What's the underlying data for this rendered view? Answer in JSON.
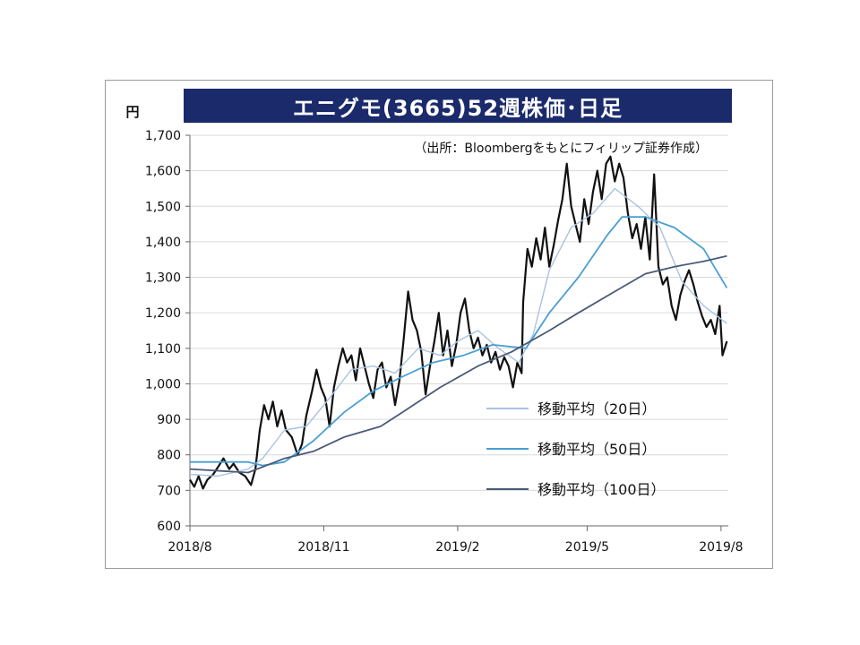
{
  "chart_data": {
    "type": "line",
    "title": "エニグモ(3665)52週株価･日足",
    "subtitle": "（出所：Bloombergをもとにフィリップ証券作成）",
    "ylabel": "円",
    "ylim": [
      600,
      1700
    ],
    "yticks": [
      600,
      700,
      800,
      900,
      1000,
      1100,
      1200,
      1300,
      1400,
      1500,
      1600,
      1700
    ],
    "ytick_labels": [
      "600",
      "700",
      "800",
      "900",
      "1,000",
      "1,100",
      "1,200",
      "1,300",
      "1,400",
      "1,500",
      "1,600",
      "1,700"
    ],
    "xlim": [
      "2018-08-01",
      "2019-08-06"
    ],
    "xticks": [
      "2018-08-01",
      "2018-11-01",
      "2019-02-01",
      "2019-05-01",
      "2019-08-01"
    ],
    "xtick_labels": [
      "2018/8",
      "2018/11",
      "2019/2",
      "2019/5",
      "2019/8"
    ],
    "grid": true,
    "legend_position": "bottom-right",
    "series": [
      {
        "name": "",
        "color": "#111111",
        "points": [
          [
            "2018-08-01",
            730
          ],
          [
            "2018-08-04",
            710
          ],
          [
            "2018-08-07",
            740
          ],
          [
            "2018-08-10",
            705
          ],
          [
            "2018-08-13",
            730
          ],
          [
            "2018-08-17",
            745
          ],
          [
            "2018-08-21",
            770
          ],
          [
            "2018-08-24",
            790
          ],
          [
            "2018-08-28",
            760
          ],
          [
            "2018-08-31",
            775
          ],
          [
            "2018-09-04",
            750
          ],
          [
            "2018-09-08",
            740
          ],
          [
            "2018-09-12",
            715
          ],
          [
            "2018-09-15",
            760
          ],
          [
            "2018-09-18",
            870
          ],
          [
            "2018-09-21",
            940
          ],
          [
            "2018-09-24",
            900
          ],
          [
            "2018-09-27",
            950
          ],
          [
            "2018-09-30",
            880
          ],
          [
            "2018-10-03",
            925
          ],
          [
            "2018-10-06",
            870
          ],
          [
            "2018-10-10",
            850
          ],
          [
            "2018-10-14",
            800
          ],
          [
            "2018-10-17",
            830
          ],
          [
            "2018-10-20",
            910
          ],
          [
            "2018-10-24",
            980
          ],
          [
            "2018-10-27",
            1040
          ],
          [
            "2018-10-30",
            990
          ],
          [
            "2018-11-02",
            960
          ],
          [
            "2018-11-05",
            880
          ],
          [
            "2018-11-08",
            990
          ],
          [
            "2018-11-11",
            1050
          ],
          [
            "2018-11-14",
            1100
          ],
          [
            "2018-11-17",
            1060
          ],
          [
            "2018-11-20",
            1080
          ],
          [
            "2018-11-23",
            1010
          ],
          [
            "2018-11-26",
            1100
          ],
          [
            "2018-11-29",
            1050
          ],
          [
            "2018-12-02",
            1000
          ],
          [
            "2018-12-05",
            960
          ],
          [
            "2018-12-08",
            1040
          ],
          [
            "2018-12-11",
            1060
          ],
          [
            "2018-12-14",
            990
          ],
          [
            "2018-12-17",
            1020
          ],
          [
            "2018-12-20",
            940
          ],
          [
            "2018-12-23",
            1010
          ],
          [
            "2018-12-26",
            1130
          ],
          [
            "2018-12-29",
            1260
          ],
          [
            "2019-01-01",
            1180
          ],
          [
            "2019-01-04",
            1150
          ],
          [
            "2019-01-07",
            1090
          ],
          [
            "2019-01-10",
            970
          ],
          [
            "2019-01-13",
            1050
          ],
          [
            "2019-01-16",
            1120
          ],
          [
            "2019-01-19",
            1200
          ],
          [
            "2019-01-22",
            1080
          ],
          [
            "2019-01-25",
            1150
          ],
          [
            "2019-01-28",
            1050
          ],
          [
            "2019-01-31",
            1110
          ],
          [
            "2019-02-03",
            1200
          ],
          [
            "2019-02-06",
            1240
          ],
          [
            "2019-02-09",
            1150
          ],
          [
            "2019-02-12",
            1100
          ],
          [
            "2019-02-15",
            1130
          ],
          [
            "2019-02-18",
            1080
          ],
          [
            "2019-02-21",
            1110
          ],
          [
            "2019-02-24",
            1060
          ],
          [
            "2019-02-27",
            1090
          ],
          [
            "2019-03-02",
            1040
          ],
          [
            "2019-03-05",
            1075
          ],
          [
            "2019-03-08",
            1050
          ],
          [
            "2019-03-11",
            990
          ],
          [
            "2019-03-14",
            1060
          ],
          [
            "2019-03-17",
            1030
          ],
          [
            "2019-03-18",
            1230
          ],
          [
            "2019-03-21",
            1380
          ],
          [
            "2019-03-24",
            1330
          ],
          [
            "2019-03-27",
            1410
          ],
          [
            "2019-03-30",
            1350
          ],
          [
            "2019-04-02",
            1440
          ],
          [
            "2019-04-05",
            1330
          ],
          [
            "2019-04-08",
            1390
          ],
          [
            "2019-04-11",
            1460
          ],
          [
            "2019-04-14",
            1520
          ],
          [
            "2019-04-17",
            1620
          ],
          [
            "2019-04-20",
            1500
          ],
          [
            "2019-04-23",
            1450
          ],
          [
            "2019-04-26",
            1400
          ],
          [
            "2019-04-29",
            1520
          ],
          [
            "2019-05-02",
            1450
          ],
          [
            "2019-05-05",
            1540
          ],
          [
            "2019-05-08",
            1600
          ],
          [
            "2019-05-11",
            1520
          ],
          [
            "2019-05-14",
            1620
          ],
          [
            "2019-05-17",
            1640
          ],
          [
            "2019-05-20",
            1570
          ],
          [
            "2019-05-23",
            1620
          ],
          [
            "2019-05-26",
            1580
          ],
          [
            "2019-05-29",
            1480
          ],
          [
            "2019-06-01",
            1410
          ],
          [
            "2019-06-04",
            1450
          ],
          [
            "2019-06-07",
            1380
          ],
          [
            "2019-06-10",
            1470
          ],
          [
            "2019-06-13",
            1350
          ],
          [
            "2019-06-16",
            1590
          ],
          [
            "2019-06-19",
            1330
          ],
          [
            "2019-06-22",
            1280
          ],
          [
            "2019-06-25",
            1300
          ],
          [
            "2019-06-28",
            1220
          ],
          [
            "2019-07-01",
            1180
          ],
          [
            "2019-07-04",
            1250
          ],
          [
            "2019-07-07",
            1290
          ],
          [
            "2019-07-10",
            1320
          ],
          [
            "2019-07-13",
            1280
          ],
          [
            "2019-07-16",
            1230
          ],
          [
            "2019-07-19",
            1190
          ],
          [
            "2019-07-22",
            1160
          ],
          [
            "2019-07-25",
            1180
          ],
          [
            "2019-07-28",
            1140
          ],
          [
            "2019-07-31",
            1220
          ],
          [
            "2019-08-02",
            1080
          ],
          [
            "2019-08-05",
            1120
          ]
        ]
      },
      {
        "name": "移動平均（20日）",
        "color": "#a9c3e2",
        "points": [
          [
            "2018-08-01",
            745
          ],
          [
            "2018-08-20",
            740
          ],
          [
            "2018-09-10",
            760
          ],
          [
            "2018-09-20",
            790
          ],
          [
            "2018-10-05",
            870
          ],
          [
            "2018-10-20",
            880
          ],
          [
            "2018-11-05",
            960
          ],
          [
            "2018-11-20",
            1040
          ],
          [
            "2018-12-05",
            1050
          ],
          [
            "2018-12-20",
            1030
          ],
          [
            "2019-01-05",
            1100
          ],
          [
            "2019-01-20",
            1080
          ],
          [
            "2019-02-01",
            1120
          ],
          [
            "2019-02-15",
            1150
          ],
          [
            "2019-03-01",
            1100
          ],
          [
            "2019-03-15",
            1060
          ],
          [
            "2019-03-25",
            1140
          ],
          [
            "2019-04-05",
            1320
          ],
          [
            "2019-04-20",
            1440
          ],
          [
            "2019-05-05",
            1480
          ],
          [
            "2019-05-20",
            1550
          ],
          [
            "2019-06-05",
            1500
          ],
          [
            "2019-06-20",
            1440
          ],
          [
            "2019-07-05",
            1290
          ],
          [
            "2019-07-20",
            1220
          ],
          [
            "2019-08-05",
            1170
          ]
        ]
      },
      {
        "name": "移動平均（50日）",
        "color": "#4a9fd2",
        "points": [
          [
            "2018-08-01",
            780
          ],
          [
            "2018-09-10",
            780
          ],
          [
            "2018-09-20",
            770
          ],
          [
            "2018-10-05",
            780
          ],
          [
            "2018-10-25",
            840
          ],
          [
            "2018-11-15",
            920
          ],
          [
            "2018-12-05",
            980
          ],
          [
            "2018-12-25",
            1020
          ],
          [
            "2019-01-15",
            1060
          ],
          [
            "2019-02-05",
            1080
          ],
          [
            "2019-02-25",
            1110
          ],
          [
            "2019-03-20",
            1100
          ],
          [
            "2019-04-05",
            1200
          ],
          [
            "2019-04-25",
            1300
          ],
          [
            "2019-05-15",
            1420
          ],
          [
            "2019-05-25",
            1470
          ],
          [
            "2019-06-10",
            1470
          ],
          [
            "2019-06-30",
            1440
          ],
          [
            "2019-07-20",
            1380
          ],
          [
            "2019-08-05",
            1270
          ]
        ]
      },
      {
        "name": "移動平均（100日）",
        "color": "#4b5a78",
        "points": [
          [
            "2018-08-01",
            760
          ],
          [
            "2018-09-10",
            750
          ],
          [
            "2018-10-05",
            790
          ],
          [
            "2018-10-25",
            810
          ],
          [
            "2018-11-15",
            850
          ],
          [
            "2018-12-10",
            880
          ],
          [
            "2018-12-25",
            920
          ],
          [
            "2019-01-20",
            990
          ],
          [
            "2019-02-15",
            1050
          ],
          [
            "2019-03-10",
            1090
          ],
          [
            "2019-04-05",
            1150
          ],
          [
            "2019-04-25",
            1200
          ],
          [
            "2019-05-20",
            1260
          ],
          [
            "2019-06-10",
            1310
          ],
          [
            "2019-06-30",
            1330
          ],
          [
            "2019-07-20",
            1345
          ],
          [
            "2019-08-05",
            1360
          ]
        ]
      }
    ]
  }
}
